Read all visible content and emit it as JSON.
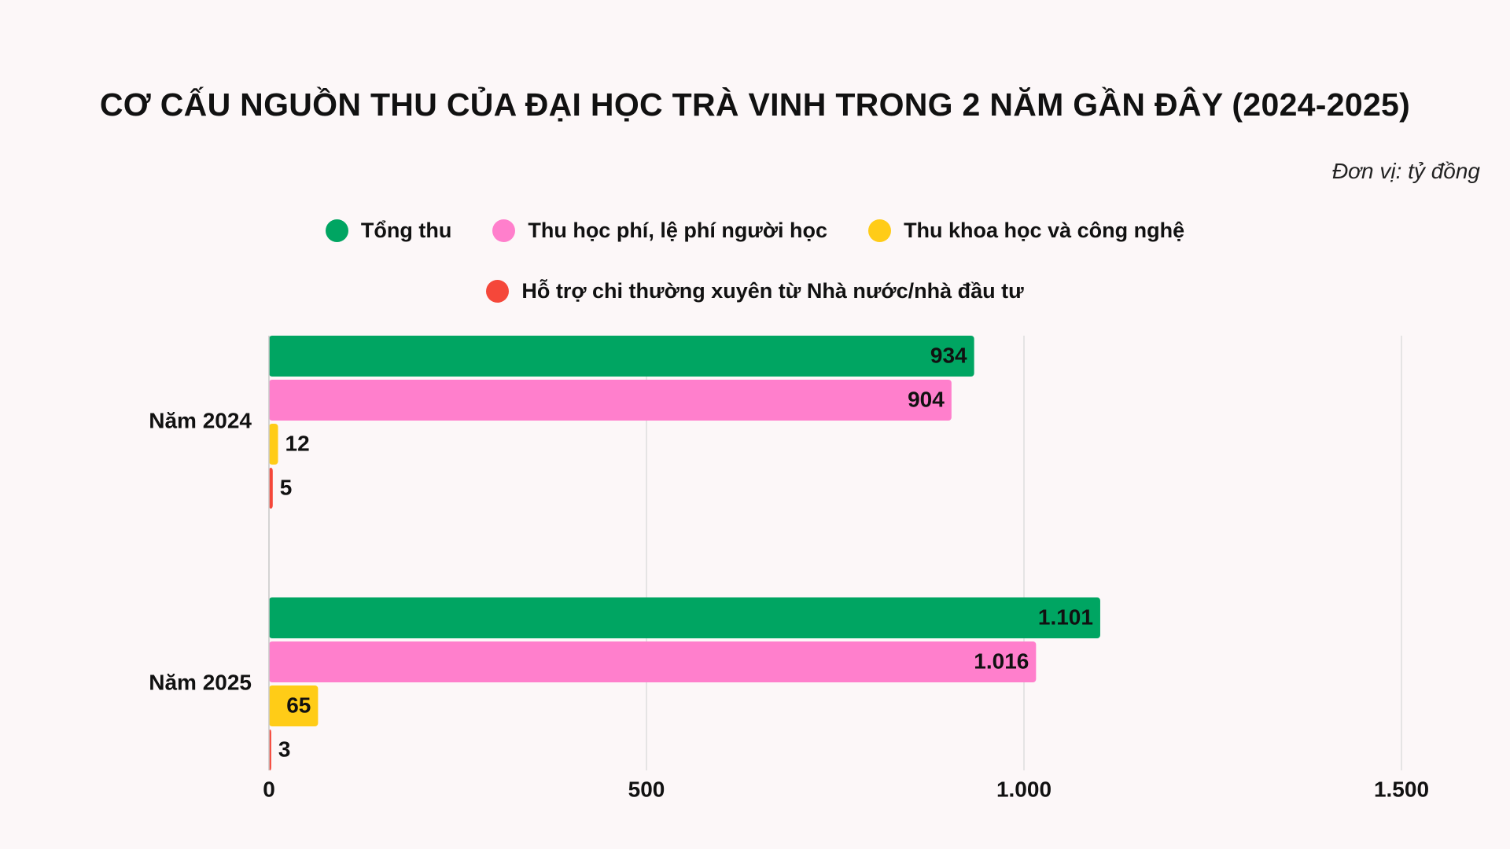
{
  "chart_data": {
    "type": "hbar",
    "title": "CƠ CẤU NGUỒN THU CỦA ĐẠI HỌC TRÀ VINH TRONG 2 NĂM GẦN ĐÂY (2024-2025)",
    "subtitle": "Đơn vị: tỷ đồng",
    "categories": [
      "Năm 2024",
      "Năm 2025"
    ],
    "series": [
      {
        "name": "Tổng thu",
        "color": "#00a562",
        "values": [
          934,
          1101
        ],
        "value_labels": [
          "934",
          "1.101"
        ]
      },
      {
        "name": "Thu học phí, lệ phí người học",
        "color": "#ff7fcc",
        "values": [
          904,
          1016
        ],
        "value_labels": [
          "904",
          "1.016"
        ]
      },
      {
        "name": "Thu khoa học và công nghệ",
        "color": "#ffcc17",
        "values": [
          12,
          65
        ],
        "value_labels": [
          "12",
          "65"
        ]
      },
      {
        "name": "Hỗ trợ chi thường xuyên từ Nhà nước/nhà đầu tư",
        "color": "#f5473a",
        "values": [
          5,
          3
        ],
        "value_labels": [
          "5",
          "3"
        ]
      }
    ],
    "xlim": [
      0,
      1500
    ],
    "xticks": [
      0,
      500,
      {
        "value": 1000,
        "label": "1.000"
      },
      {
        "value": 1500,
        "label": "1.500"
      }
    ],
    "grid": true
  }
}
